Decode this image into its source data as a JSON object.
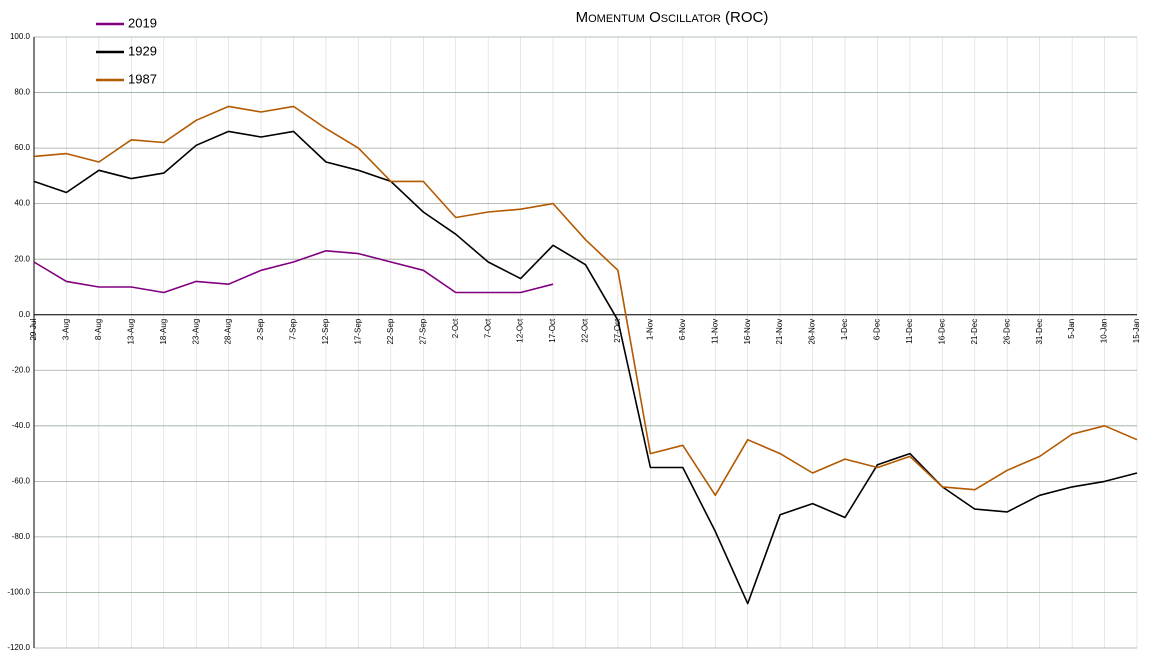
{
  "chart_data": {
    "type": "line",
    "title": "Momentum Oscillator (ROC)",
    "categories": [
      "29-Jul",
      "3-Aug",
      "8-Aug",
      "13-Aug",
      "18-Aug",
      "23-Aug",
      "28-Aug",
      "2-Sep",
      "7-Sep",
      "12-Sep",
      "17-Sep",
      "22-Sep",
      "27-Sep",
      "2-Oct",
      "7-Oct",
      "12-Oct",
      "17-Oct",
      "22-Oct",
      "27-Oct",
      "1-Nov",
      "6-Nov",
      "11-Nov",
      "16-Nov",
      "21-Nov",
      "26-Nov",
      "1-Dec",
      "6-Dec",
      "11-Dec",
      "16-Dec",
      "21-Dec",
      "26-Dec",
      "31-Dec",
      "5-Jan",
      "10-Jan",
      "15-Jan"
    ],
    "series": [
      {
        "name": "2019",
        "color": "#800080",
        "values": [
          19,
          12,
          10,
          10,
          8,
          12,
          11,
          16,
          19,
          23,
          22,
          19,
          16,
          8,
          8,
          8,
          11,
          null,
          null,
          null,
          null,
          null,
          null,
          null,
          null,
          null,
          null,
          null,
          null,
          null,
          null,
          null,
          null,
          null,
          null
        ]
      },
      {
        "name": "1929",
        "color": "#000000",
        "values": [
          48,
          44,
          52,
          49,
          51,
          61,
          66,
          64,
          66,
          55,
          52,
          48,
          37,
          29,
          19,
          13,
          25,
          18,
          -2,
          -55,
          -55,
          -78,
          -104,
          -72,
          -68,
          -73,
          -54,
          -50,
          -62,
          -70,
          -71,
          -65,
          -62,
          -60,
          -57
        ]
      },
      {
        "name": "1987",
        "color": "#b35900",
        "values": [
          57,
          58,
          55,
          63,
          62,
          70,
          75,
          73,
          75,
          67,
          60,
          48,
          48,
          35,
          37,
          38,
          40,
          27,
          16,
          -50,
          -47,
          -65,
          -45,
          -50,
          -57,
          -52,
          -55,
          -51,
          -62,
          -63,
          -56,
          -51,
          -43,
          -40,
          -45
        ]
      }
    ],
    "ylim": [
      -120,
      100
    ],
    "yticks": [
      {
        "value": 100,
        "label": "100.0"
      },
      {
        "value": 80,
        "label": "80.0"
      },
      {
        "value": 60,
        "label": "60.0"
      },
      {
        "value": 40,
        "label": "40.0"
      },
      {
        "value": 20,
        "label": "20.0"
      },
      {
        "value": 0,
        "label": "0.0"
      },
      {
        "value": -20,
        "label": "-20.0"
      },
      {
        "value": -40,
        "label": "-40.0"
      },
      {
        "value": -60,
        "label": "-60.0"
      },
      {
        "value": -80,
        "label": "-80.0"
      },
      {
        "value": -100,
        "label": "-100.0"
      },
      {
        "value": -120,
        "label": "-120.0"
      }
    ],
    "grid": true,
    "legend": "top-left"
  }
}
